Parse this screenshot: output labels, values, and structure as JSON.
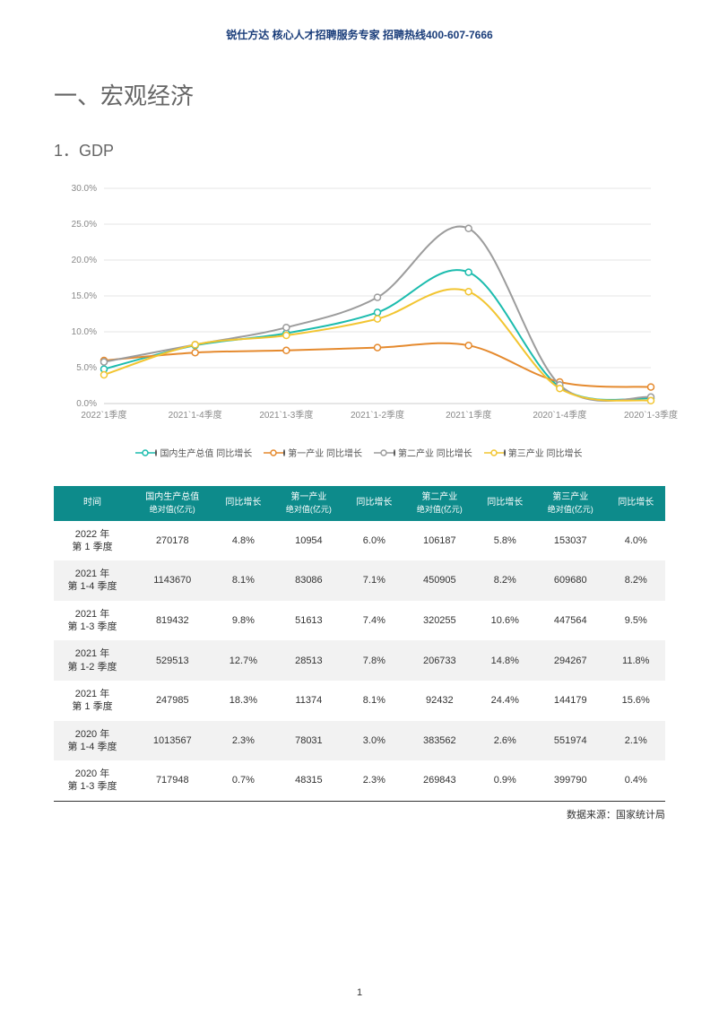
{
  "header": "锐仕方达  核心人才招聘服务专家  招聘热线400-607-7666",
  "section_title": "一、宏观经济",
  "sub_title": "1．GDP",
  "chart": {
    "type": "line",
    "ylim": [
      0,
      30
    ],
    "ytick_step": 5,
    "ytick_suffix": ".0%",
    "background_color": "#ffffff",
    "grid_color": "#e6e6e6",
    "axis_color": "#cccccc",
    "label_fontsize": 10,
    "label_color": "#888888",
    "categories": [
      "2022`1季度",
      "2021`1-4季度",
      "2021`1-3季度",
      "2021`1-2季度",
      "2021`1季度",
      "2020`1-4季度",
      "2020`1-3季度"
    ],
    "series": [
      {
        "name": "国内生产总值  同比增长",
        "color": "#1cbcae",
        "values": [
          4.8,
          8.1,
          9.8,
          12.7,
          18.3,
          2.3,
          0.7
        ]
      },
      {
        "name": "第一产业  同比增长",
        "color": "#e58a2e",
        "values": [
          6.0,
          7.1,
          7.4,
          7.8,
          8.1,
          3.0,
          2.3
        ]
      },
      {
        "name": "第二产业  同比增长",
        "color": "#9c9c9c",
        "values": [
          5.8,
          8.2,
          10.6,
          14.8,
          24.4,
          2.6,
          0.9
        ]
      },
      {
        "name": "第三产业  同比增长",
        "color": "#f2c531",
        "values": [
          4.0,
          8.2,
          9.5,
          11.8,
          15.6,
          2.1,
          0.4
        ]
      }
    ],
    "marker_radius": 3.5,
    "line_width": 2
  },
  "table": {
    "header_bg": "#0d8b8b",
    "header_color": "#ffffff",
    "row_alt_bg": "#f2f2f2",
    "columns": [
      {
        "label": "时间",
        "sub": ""
      },
      {
        "label": "国内生产总值",
        "sub": "绝对值(亿元)"
      },
      {
        "label": "同比增长",
        "sub": ""
      },
      {
        "label": "第一产业",
        "sub": "绝对值(亿元)"
      },
      {
        "label": "同比增长",
        "sub": ""
      },
      {
        "label": "第二产业",
        "sub": "绝对值(亿元)"
      },
      {
        "label": "同比增长",
        "sub": ""
      },
      {
        "label": "第三产业",
        "sub": "绝对值(亿元)"
      },
      {
        "label": "同比增长",
        "sub": ""
      }
    ],
    "rows": [
      {
        "time_l1": "2022 年",
        "time_l2": "第 1 季度",
        "cells": [
          "270178",
          "4.8%",
          "10954",
          "6.0%",
          "106187",
          "5.8%",
          "153037",
          "4.0%"
        ]
      },
      {
        "time_l1": "2021 年",
        "time_l2": "第 1-4 季度",
        "cells": [
          "1143670",
          "8.1%",
          "83086",
          "7.1%",
          "450905",
          "8.2%",
          "609680",
          "8.2%"
        ]
      },
      {
        "time_l1": "2021 年",
        "time_l2": "第 1-3 季度",
        "cells": [
          "819432",
          "9.8%",
          "51613",
          "7.4%",
          "320255",
          "10.6%",
          "447564",
          "9.5%"
        ]
      },
      {
        "time_l1": "2021 年",
        "time_l2": "第 1-2 季度",
        "cells": [
          "529513",
          "12.7%",
          "28513",
          "7.8%",
          "206733",
          "14.8%",
          "294267",
          "11.8%"
        ]
      },
      {
        "time_l1": "2021 年",
        "time_l2": "第 1 季度",
        "cells": [
          "247985",
          "18.3%",
          "11374",
          "8.1%",
          "92432",
          "24.4%",
          "144179",
          "15.6%"
        ]
      },
      {
        "time_l1": "2020 年",
        "time_l2": "第 1-4 季度",
        "cells": [
          "1013567",
          "2.3%",
          "78031",
          "3.0%",
          "383562",
          "2.6%",
          "551974",
          "2.1%"
        ]
      },
      {
        "time_l1": "2020 年",
        "time_l2": "第 1-3 季度",
        "cells": [
          "717948",
          "0.7%",
          "48315",
          "2.3%",
          "269843",
          "0.9%",
          "399790",
          "0.4%"
        ]
      }
    ]
  },
  "source": "数据来源：国家统计局",
  "page_number": "1"
}
